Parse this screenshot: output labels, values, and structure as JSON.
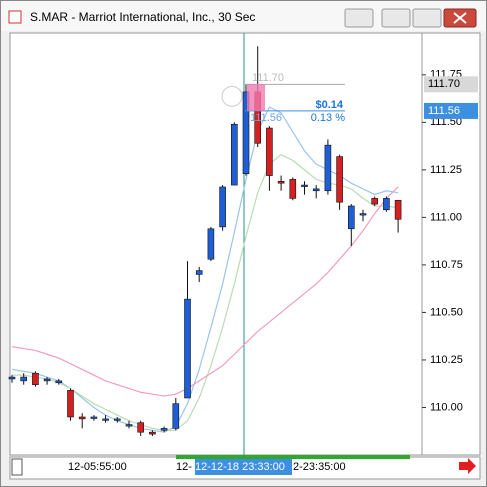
{
  "window": {
    "title": "S.MAR - Marriot International, Inc., 30 Sec"
  },
  "chart_data": {
    "type": "candlestick",
    "up_color": "#1f5fd6",
    "down_color": "#d42020",
    "open": [
      110.15,
      110.14,
      110.18,
      110.14,
      110.13,
      110.09,
      109.95,
      109.95,
      109.94,
      109.94,
      109.91,
      109.92,
      109.87,
      109.88,
      109.89,
      110.05,
      110.7,
      110.78,
      110.95,
      111.17,
      111.23,
      111.66,
      111.47,
      111.19,
      111.2,
      111.17,
      111.14,
      111.14,
      111.32,
      110.94,
      111.02,
      111.1,
      111.04,
      111.09
    ],
    "high": [
      110.17,
      110.18,
      110.19,
      110.16,
      110.15,
      110.1,
      109.97,
      109.96,
      109.96,
      109.95,
      109.93,
      109.93,
      109.88,
      109.9,
      110.05,
      110.77,
      110.74,
      110.95,
      111.17,
      111.5,
      111.7,
      111.9,
      111.48,
      111.22,
      111.21,
      111.19,
      111.17,
      111.41,
      111.33,
      111.07,
      111.04,
      111.11,
      111.11,
      111.09
    ],
    "low": [
      110.13,
      110.12,
      110.11,
      110.12,
      110.12,
      109.93,
      109.89,
      109.93,
      109.92,
      109.92,
      109.89,
      109.85,
      109.85,
      109.87,
      109.88,
      110.05,
      110.66,
      110.77,
      110.93,
      111.17,
      111.22,
      111.37,
      111.14,
      111.14,
      111.09,
      111.12,
      111.1,
      111.12,
      111.04,
      110.85,
      110.98,
      111.06,
      111.03,
      110.92
    ],
    "close": [
      110.16,
      110.16,
      110.12,
      110.15,
      110.14,
      109.95,
      109.94,
      109.95,
      109.94,
      109.94,
      109.91,
      109.87,
      109.86,
      109.89,
      110.02,
      110.57,
      110.72,
      110.94,
      111.16,
      111.49,
      111.66,
      111.39,
      111.22,
      111.18,
      111.1,
      111.17,
      111.15,
      111.38,
      111.08,
      111.06,
      111.02,
      111.07,
      111.1,
      110.99
    ],
    "lines": [
      {
        "color": "#9cc4ea",
        "values": [
          110.2,
          110.19,
          110.18,
          110.16,
          110.14,
          110.1,
          110.05,
          110,
          109.96,
          109.93,
          109.91,
          109.89,
          109.88,
          109.87,
          109.9,
          110.02,
          110.2,
          110.42,
          110.65,
          110.92,
          111.2,
          111.45,
          111.58,
          111.55,
          111.45,
          111.35,
          111.28,
          111.25,
          111.22,
          111.18,
          111.15,
          111.12,
          111.14,
          111.13
        ]
      },
      {
        "color": "#b9dcb5",
        "values": [
          110.17,
          110.17,
          110.16,
          110.15,
          110.13,
          110.1,
          110.06,
          110.02,
          109.99,
          109.96,
          109.93,
          109.91,
          109.89,
          109.88,
          109.88,
          109.93,
          110.05,
          110.22,
          110.42,
          110.65,
          110.9,
          111.13,
          111.28,
          111.33,
          111.3,
          111.25,
          111.2,
          111.18,
          111.17,
          111.15,
          111.1,
          111.06,
          111.06,
          111.05
        ]
      },
      {
        "color": "#f39ac0",
        "values": [
          110.32,
          110.31,
          110.3,
          110.28,
          110.26,
          110.23,
          110.2,
          110.17,
          110.14,
          110.12,
          110.1,
          110.08,
          110.07,
          110.06,
          110.07,
          110.1,
          110.14,
          110.18,
          110.22,
          110.28,
          110.34,
          110.4,
          110.45,
          110.5,
          110.55,
          110.6,
          110.65,
          110.71,
          110.78,
          110.85,
          110.93,
          111.02,
          111.1,
          111.16
        ]
      }
    ],
    "ylim": [
      109.75,
      111.97
    ],
    "yticks": [
      {
        "value": 110,
        "label": "110.00"
      },
      110.25,
      {
        "value": 110.5,
        "label": "110.50"
      },
      110.75,
      {
        "value": 111,
        "label": "111.00"
      },
      111.25,
      {
        "value": 111.5,
        "label": "111.50"
      },
      111.75
    ],
    "price_labels": [
      {
        "value": 111.7,
        "label": "111.70",
        "color": "#d8d8d8"
      },
      {
        "value": 111.56,
        "label": "111.56",
        "color": "#3d8fe0"
      }
    ],
    "measure": {
      "change": "$0.14",
      "percent": "0.13 %",
      "from": "111.70",
      "to": "111.56"
    },
    "x_labels": [
      "12-05:55:00",
      "12-",
      "12-12-18 23:33:00",
      "2-23:35:00"
    ]
  }
}
